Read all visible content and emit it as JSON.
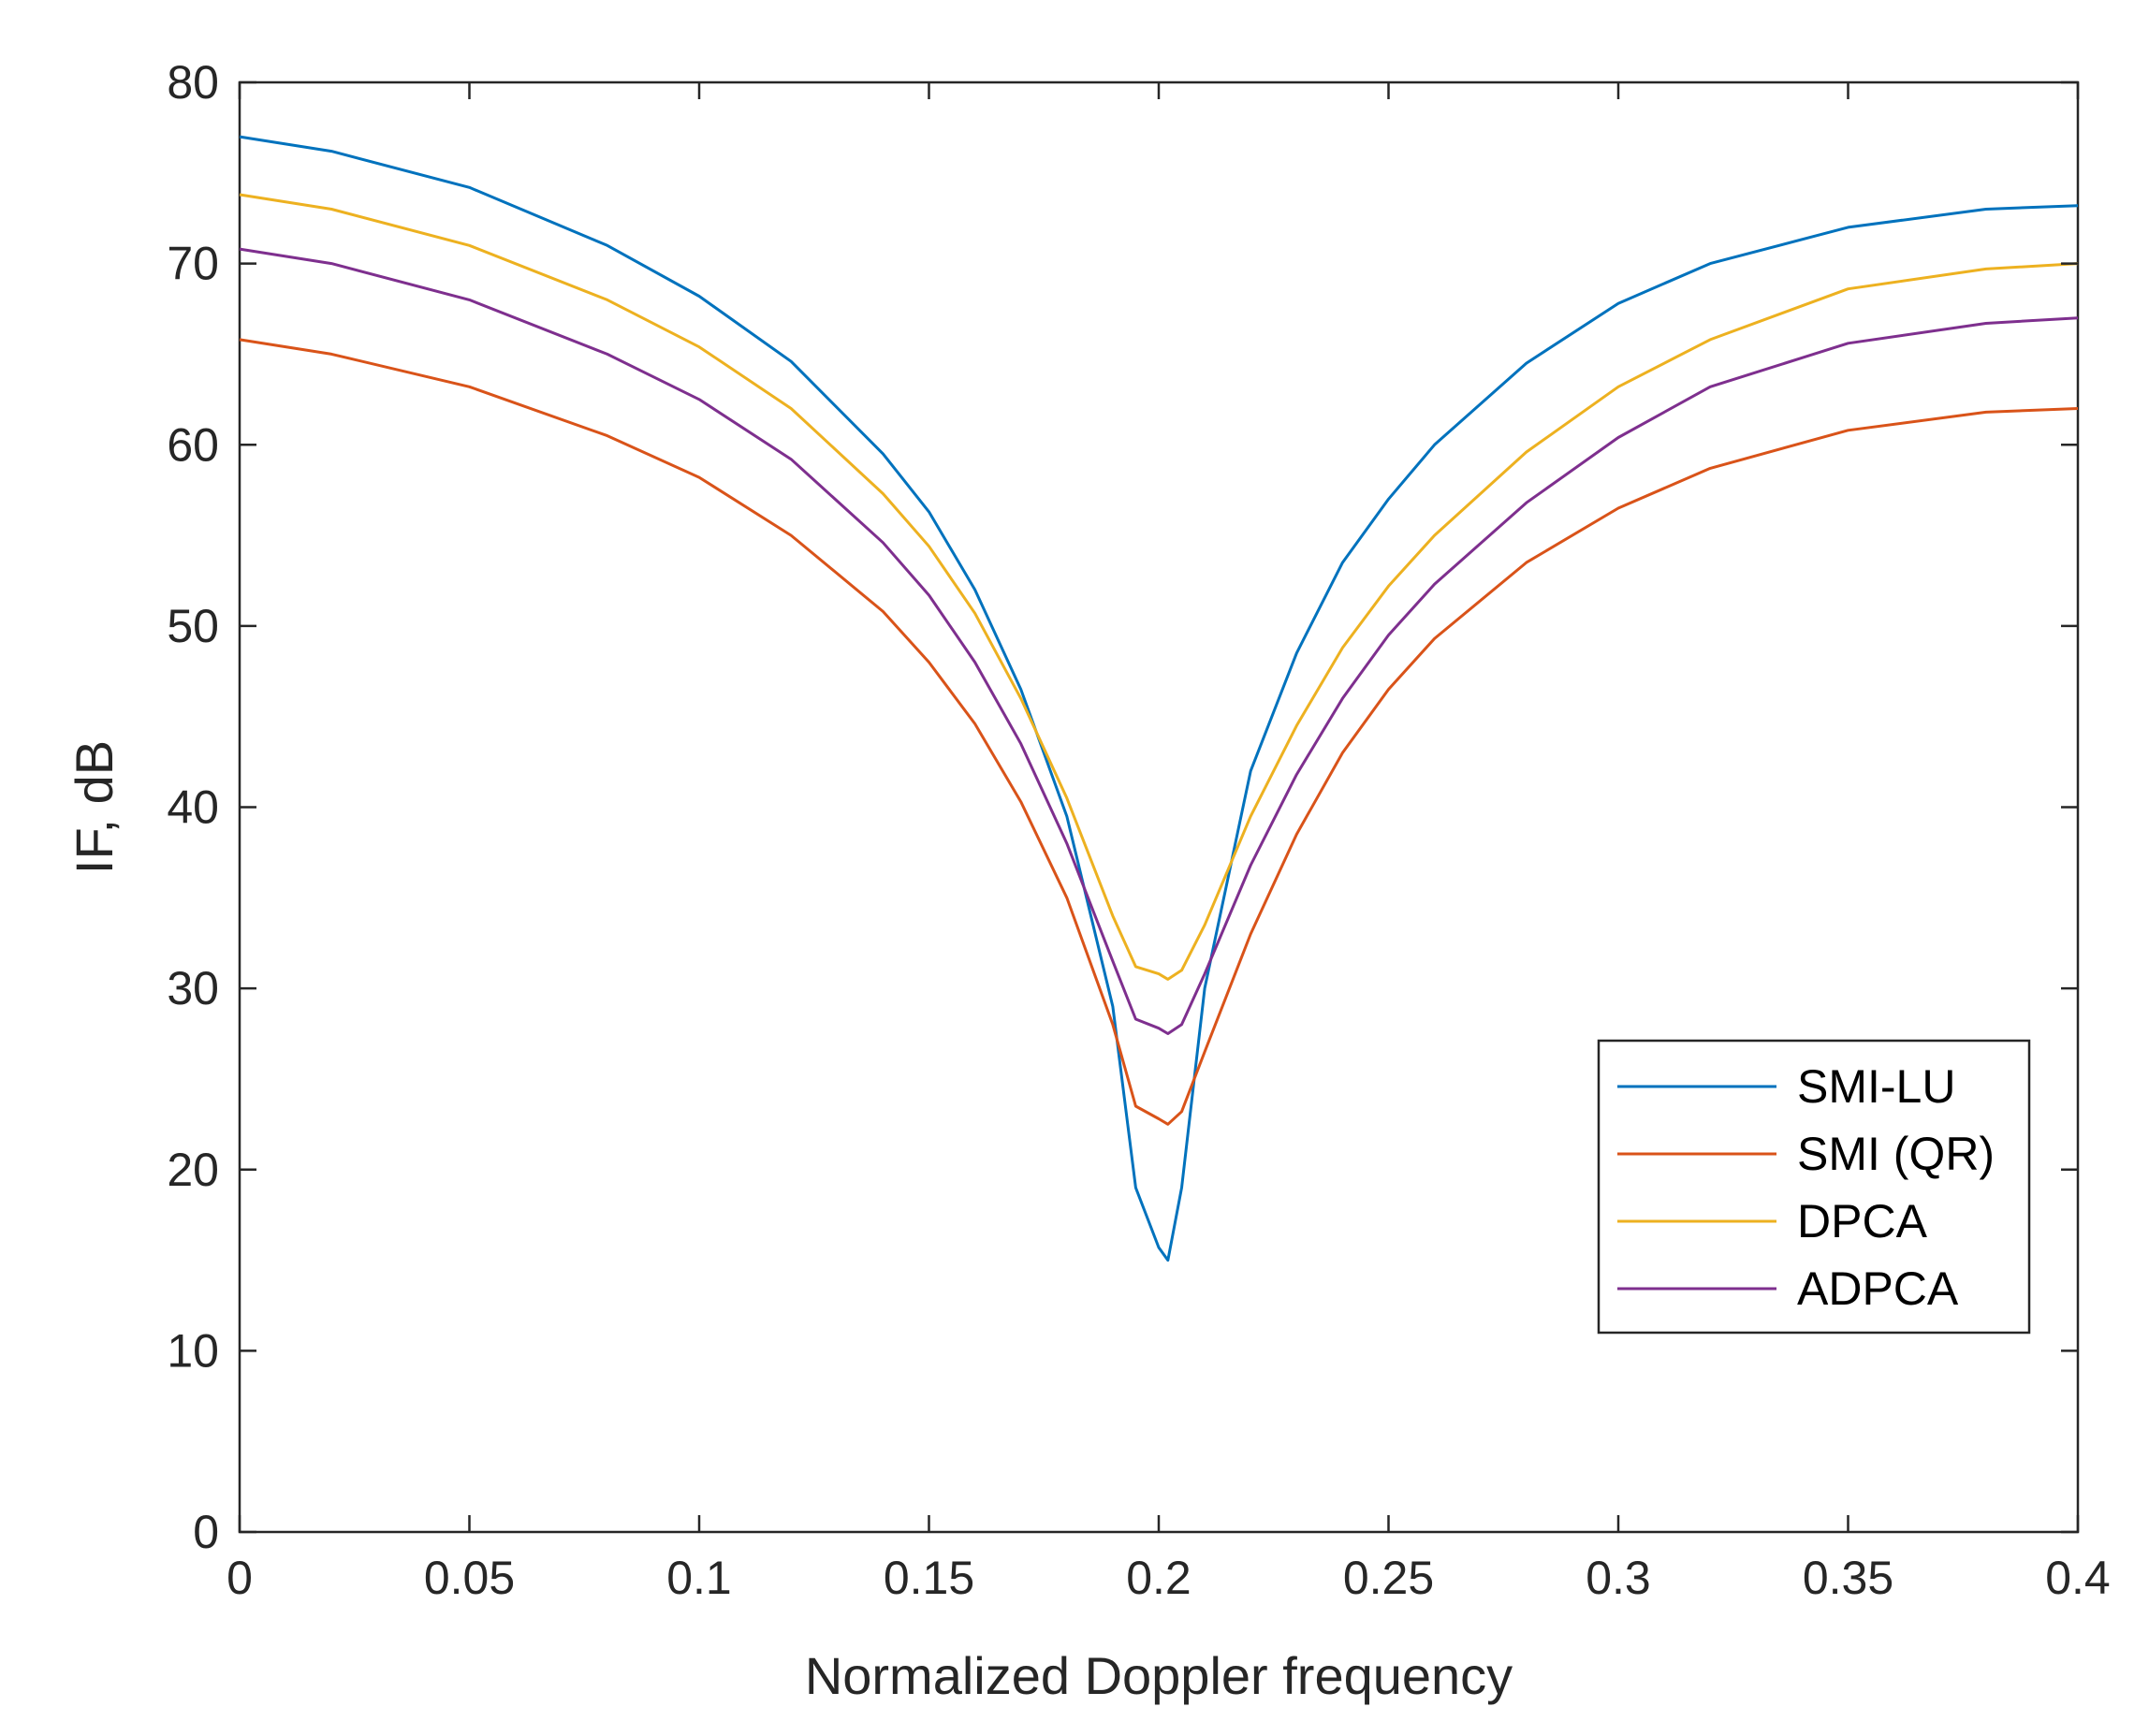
{
  "chart_data": {
    "type": "line",
    "title": "",
    "xlabel": "Normalized Doppler frequency",
    "ylabel": "IF, dB",
    "xlim": [
      0,
      0.4
    ],
    "ylim": [
      0,
      80
    ],
    "grid": false,
    "legend_position": "bottom-right",
    "x_ticks": [
      0,
      0.05,
      0.1,
      0.15,
      0.2,
      0.25,
      0.3,
      0.35,
      0.4
    ],
    "x_tick_labels": [
      "0",
      "0.05",
      "0.1",
      "0.15",
      "0.2",
      "0.25",
      "0.3",
      "0.35",
      "0.4"
    ],
    "y_ticks": [
      0,
      10,
      20,
      30,
      40,
      50,
      60,
      70,
      80
    ],
    "y_tick_labels": [
      "0",
      "10",
      "20",
      "30",
      "40",
      "50",
      "60",
      "70",
      "80"
    ],
    "x": [
      0,
      0.02,
      0.05,
      0.08,
      0.1,
      0.12,
      0.14,
      0.15,
      0.16,
      0.17,
      0.18,
      0.19,
      0.195,
      0.2,
      0.202,
      0.205,
      0.21,
      0.22,
      0.23,
      0.24,
      0.25,
      0.26,
      0.28,
      0.3,
      0.32,
      0.35,
      0.38,
      0.4
    ],
    "series": [
      {
        "name": "SMI-LU",
        "color": "#0072BD",
        "values": [
          77.0,
          76.2,
          74.2,
          71.0,
          68.2,
          64.6,
          59.5,
          56.3,
          52.0,
          46.5,
          39.5,
          29.0,
          19.0,
          15.7,
          15.0,
          19.0,
          30.0,
          42.0,
          48.5,
          53.5,
          57.0,
          60.0,
          64.5,
          67.8,
          70.0,
          72.0,
          73.0,
          73.2
        ]
      },
      {
        "name": "SMI (QR)",
        "color": "#D95319",
        "values": [
          65.8,
          65.0,
          63.2,
          60.5,
          58.2,
          55.0,
          50.8,
          48.0,
          44.6,
          40.3,
          35.0,
          28.0,
          23.5,
          22.8,
          22.5,
          23.2,
          26.5,
          33.0,
          38.5,
          43.0,
          46.5,
          49.3,
          53.5,
          56.5,
          58.7,
          60.8,
          61.8,
          62.0
        ]
      },
      {
        "name": "DPCA",
        "color": "#EDB120",
        "values": [
          73.8,
          73.0,
          71.0,
          68.0,
          65.4,
          62.0,
          57.3,
          54.4,
          50.7,
          46.0,
          40.5,
          34.0,
          31.2,
          30.8,
          30.5,
          31.0,
          33.5,
          39.5,
          44.5,
          48.8,
          52.2,
          55.0,
          59.6,
          63.2,
          65.8,
          68.6,
          69.7,
          70.0
        ]
      },
      {
        "name": "ADPCA",
        "color": "#7E2F8E",
        "values": [
          70.8,
          70.0,
          68.0,
          65.0,
          62.5,
          59.2,
          54.6,
          51.7,
          48.0,
          43.5,
          38.0,
          31.5,
          28.3,
          27.8,
          27.5,
          28.0,
          30.8,
          36.8,
          41.8,
          46.0,
          49.5,
          52.3,
          56.8,
          60.4,
          63.2,
          65.6,
          66.7,
          67.0
        ]
      }
    ]
  }
}
